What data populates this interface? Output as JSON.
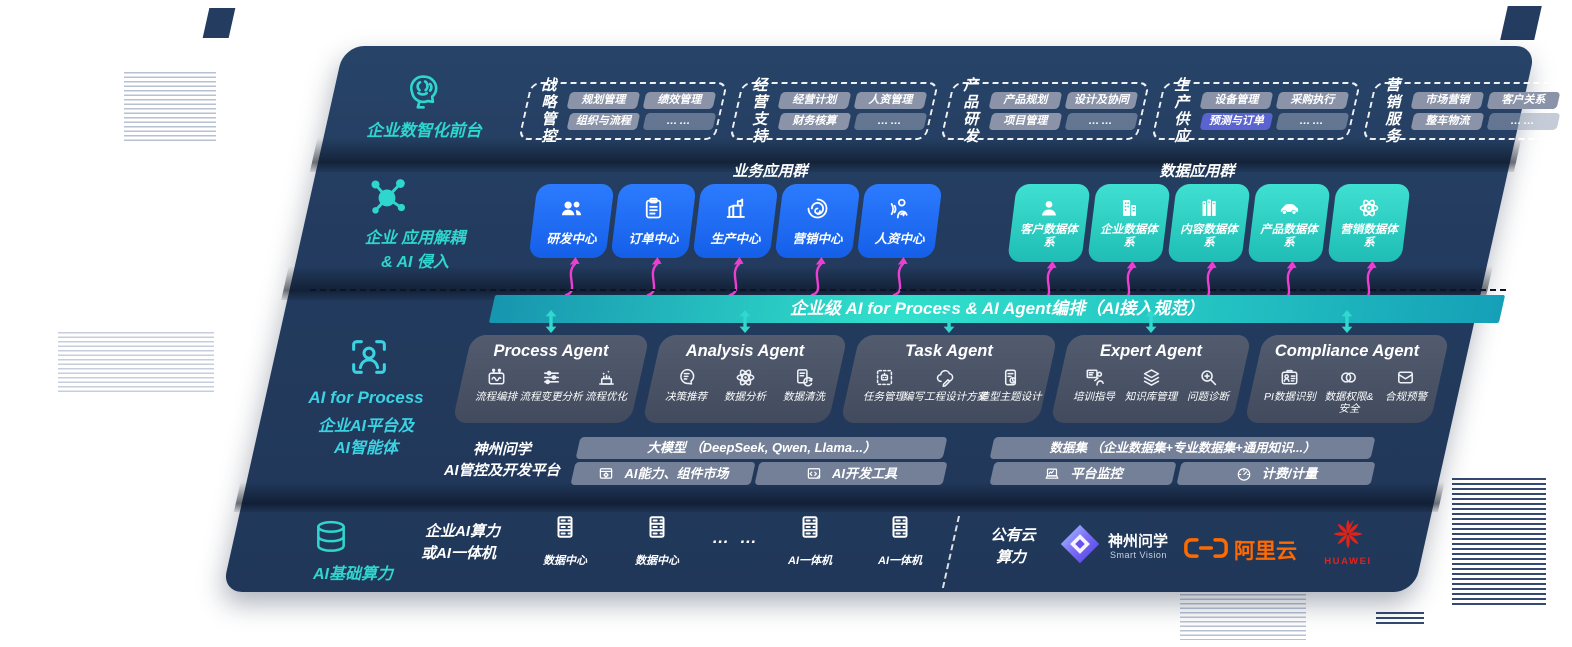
{
  "frontend": {
    "label": "企业数智化前台",
    "icon": "brain-circuit-icon",
    "groups": [
      {
        "label": "战略管控",
        "items": [
          "规划管理",
          "绩效管理",
          "组织与流程",
          "……"
        ]
      },
      {
        "label": "经营支持",
        "items": [
          "经营计划",
          "人资管理",
          "财务核算",
          "……"
        ]
      },
      {
        "label": "产品研发",
        "items": [
          "产品规划",
          "设计及协同",
          "项目管理",
          "……"
        ]
      },
      {
        "label": "生产供应",
        "items": [
          "设备管理",
          "采购执行",
          "预测与订单",
          "……"
        ],
        "highlight": "预测与订单"
      },
      {
        "label": "营销服务",
        "items": [
          "市场营销",
          "客户关系",
          "整车物流",
          "……"
        ]
      }
    ]
  },
  "decouple": {
    "label_line1": "企业 应用解耦",
    "label_line2": "& AI 侵入",
    "icon": "molecule-icon",
    "business": {
      "title": "业务应用群",
      "apps": [
        {
          "label": "研发中心",
          "icon": "team-icon"
        },
        {
          "label": "订单中心",
          "icon": "clipboard-icon"
        },
        {
          "label": "生产中心",
          "icon": "production-icon"
        },
        {
          "label": "营销中心",
          "icon": "spiral-target-icon"
        },
        {
          "label": "人资中心",
          "icon": "hr-person-icon"
        }
      ]
    },
    "data": {
      "title": "数据应用群",
      "apps": [
        {
          "label": "客户数据体系",
          "icon": "customer-user-icon"
        },
        {
          "label": "企业数据体系",
          "icon": "building-icon"
        },
        {
          "label": "内容数据体系",
          "icon": "books-icon"
        },
        {
          "label": "产品数据体系",
          "icon": "car-icon"
        },
        {
          "label": "营销数据体系",
          "icon": "atom-icon"
        }
      ]
    }
  },
  "banner": {
    "text": "企业级 AI for Process & AI Agent编排（AI接入规范）"
  },
  "ai_platform": {
    "label_line1": "AI for Process",
    "label_line2": "企业AI平台及",
    "label_line3": "AI智能体",
    "icon": "person-focus-icon",
    "agents": [
      {
        "title": "Process Agent",
        "items": [
          {
            "label": "流程编排",
            "icon": "workflow-icon"
          },
          {
            "label": "流程变更分析",
            "icon": "sliders-icon"
          },
          {
            "label": "流程优化",
            "icon": "optimize-icon"
          }
        ]
      },
      {
        "title": "Analysis Agent",
        "items": [
          {
            "label": "决策推荐",
            "icon": "decision-head-icon"
          },
          {
            "label": "数据分析",
            "icon": "atom-icon"
          },
          {
            "label": "数据清洗",
            "icon": "clean-doc-icon"
          }
        ]
      },
      {
        "title": "Task Agent",
        "items": [
          {
            "label": "任务管理",
            "icon": "task-grid-icon"
          },
          {
            "label": "编写工程设计方案",
            "icon": "cloud-design-icon"
          },
          {
            "label": "造型主题设计",
            "icon": "theme-tablet-icon"
          }
        ]
      },
      {
        "title": "Expert Agent",
        "items": [
          {
            "label": "培训指导",
            "icon": "training-icon"
          },
          {
            "label": "知识库管理",
            "icon": "layers-icon"
          },
          {
            "label": "问题诊断",
            "icon": "diagnose-icon"
          }
        ]
      },
      {
        "title": "Compliance Agent",
        "items": [
          {
            "label": "PI数据识别",
            "icon": "id-card-icon"
          },
          {
            "label": "数据权限&安全",
            "icon": "rings-icon"
          },
          {
            "label": "合规预警",
            "icon": "alert-mail-icon"
          }
        ]
      }
    ],
    "platform": {
      "label_line1": "神州问学",
      "label_line2": "AI管控及开发平台",
      "model_bar": "大模型 （DeepSeek, Qwen, Llama...）",
      "dataset_bar": "数据集 （企业数据集+专业数据集+通用知识...）",
      "tool_left_1": {
        "label": "AI能力、组件市场",
        "icon": "market-icon"
      },
      "tool_left_2": {
        "label": "AI开发工具",
        "icon": "devtools-icon"
      },
      "tool_right_1": {
        "label": "平台监控",
        "icon": "monitor-icon"
      },
      "tool_right_2": {
        "label": "计费/计量",
        "icon": "gauge-icon"
      }
    }
  },
  "compute": {
    "label": "AI基础算力",
    "icon": "database-icon",
    "group_label_line1": "企业AI算力",
    "group_label_line2": "或AI一体机",
    "nodes": [
      {
        "label": "数据中心",
        "icon": "server-icon"
      },
      {
        "label": "数据中心",
        "icon": "server-icon"
      },
      {
        "label": "… …",
        "icon": "ellipsis"
      },
      {
        "label": "AI一体机",
        "icon": "server-icon"
      },
      {
        "label": "AI一体机",
        "icon": "server-icon"
      }
    ],
    "public_cloud_line1": "公有云",
    "public_cloud_line2": "算力",
    "vendors": [
      {
        "name": "神州问学",
        "sub": "Smart Vision",
        "icon": "smartvision-logo"
      },
      {
        "name": "阿里云",
        "icon": "alibabacloud-logo"
      },
      {
        "name": "HUAWEI",
        "icon": "huawei-logo"
      }
    ]
  },
  "colors": {
    "panel": "#233b5e",
    "teal": "#2fd6ce",
    "blue": "#1a6cf2",
    "teal_box": "#2bd0c6",
    "magenta": "#ea3fd0",
    "agent_box": "#4a5365",
    "pill": "#8a93a8",
    "pill_highlight": "#5a63cf",
    "alibaba_orange": "#ff6a00",
    "huawei_red": "#e2231a"
  }
}
